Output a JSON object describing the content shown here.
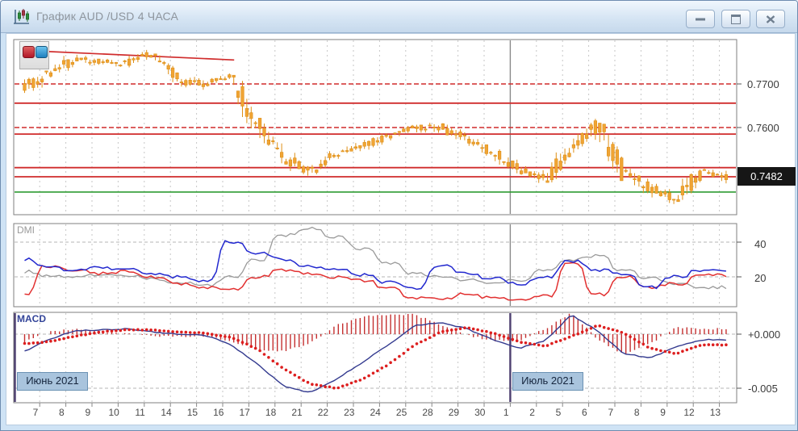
{
  "window": {
    "title": "График AUD /USD  4 ЧАСА",
    "buttons": {
      "minimize": "minimize",
      "maximize": "maximize",
      "close": "close"
    }
  },
  "colors": {
    "candle": "#F0A434",
    "candle_stroke": "#DE8F16",
    "level_red": "#D02C2C",
    "level_green": "#2E9B32",
    "dmi_plus": "#2228CF",
    "dmi_minus": "#E23030",
    "dmi_adx": "#9A9A9A",
    "macd_line": "#333A8F",
    "macd_signal": "#DD1F1F",
    "macd_hist": "#C43030",
    "month_line_gray": "#8A8A8A",
    "month_line_purple": "#4D3F70",
    "grid": "#C6C6C6",
    "panel_border": "#7F7F7F"
  },
  "chart_data": {
    "type": "candlestick+indicators",
    "symbol_timeframe": "AUD/USD 4H",
    "x_labels": [
      "7",
      "8",
      "9",
      "10",
      "11",
      "14",
      "15",
      "16",
      "17",
      "18",
      "21",
      "22",
      "23",
      "24",
      "25",
      "28",
      "29",
      "30",
      "1",
      "2",
      "5",
      "6",
      "7",
      "8",
      "9",
      "12",
      "13"
    ],
    "months": [
      {
        "label": "Июнь 2021",
        "day_index": 0
      },
      {
        "label": "Июль 2021",
        "day_index": 18
      }
    ],
    "price_axis": {
      "labels": [
        {
          "text": "0.7700",
          "price": 0.77
        },
        {
          "text": "0.7600",
          "price": 0.76
        }
      ],
      "current": {
        "text": "0.7482",
        "price": 0.7482
      }
    },
    "levels": {
      "dashed_red": [
        0.77,
        0.76
      ],
      "solid_red": [
        0.7656,
        0.7585,
        0.7508,
        0.7487
      ],
      "green": [
        0.7452
      ]
    },
    "trend_line": {
      "day1": -0.1,
      "price1": 0.7776,
      "day2": 7.6,
      "price2": 0.7755
    },
    "daily_ohlc": [
      [
        0.769,
        0.773,
        0.767,
        0.7722
      ],
      [
        0.7722,
        0.7768,
        0.7712,
        0.7756
      ],
      [
        0.7756,
        0.7775,
        0.7736,
        0.7752
      ],
      [
        0.7752,
        0.777,
        0.7732,
        0.7748
      ],
      [
        0.7748,
        0.7778,
        0.7738,
        0.777
      ],
      [
        0.777,
        0.7774,
        0.7694,
        0.7706
      ],
      [
        0.7706,
        0.7722,
        0.7678,
        0.77
      ],
      [
        0.77,
        0.7724,
        0.7692,
        0.7716
      ],
      [
        0.7716,
        0.772,
        0.7598,
        0.7612
      ],
      [
        0.7612,
        0.7622,
        0.7518,
        0.7532
      ],
      [
        0.7532,
        0.7542,
        0.7476,
        0.75
      ],
      [
        0.75,
        0.7546,
        0.749,
        0.7538
      ],
      [
        0.7538,
        0.7572,
        0.7528,
        0.756
      ],
      [
        0.756,
        0.7592,
        0.7548,
        0.758
      ],
      [
        0.758,
        0.7606,
        0.7562,
        0.7598
      ],
      [
        0.7598,
        0.7626,
        0.7586,
        0.7602
      ],
      [
        0.7602,
        0.761,
        0.7558,
        0.7572
      ],
      [
        0.7572,
        0.758,
        0.753,
        0.7542
      ],
      [
        0.7542,
        0.755,
        0.7486,
        0.7508
      ],
      [
        0.7508,
        0.7522,
        0.7462,
        0.748
      ],
      [
        0.748,
        0.756,
        0.7474,
        0.7552
      ],
      [
        0.7552,
        0.762,
        0.754,
        0.7608
      ],
      [
        0.7608,
        0.7614,
        0.7478,
        0.7496
      ],
      [
        0.7496,
        0.7506,
        0.744,
        0.746
      ],
      [
        0.746,
        0.7472,
        0.7422,
        0.7438
      ],
      [
        0.7438,
        0.7516,
        0.743,
        0.75
      ],
      [
        0.75,
        0.7506,
        0.7466,
        0.7482
      ]
    ],
    "dmi": {
      "label": "DMI",
      "axis_labels": [
        {
          "text": "40",
          "value": 40
        },
        {
          "text": "20",
          "value": 20
        }
      ],
      "adx": [
        23,
        21,
        20,
        21,
        21,
        19,
        17,
        15,
        20,
        30,
        44,
        48,
        43,
        36,
        28,
        22,
        20,
        18,
        17,
        18,
        24,
        30,
        32,
        24,
        19,
        16,
        14
      ],
      "plus_di": [
        30,
        26,
        24,
        25,
        24,
        22,
        20,
        18,
        40,
        34,
        30,
        26,
        24,
        21,
        17,
        13,
        26,
        22,
        19,
        16,
        20,
        29,
        24,
        22,
        14,
        20,
        24
      ],
      "minus_di": [
        10,
        26,
        24,
        22,
        23,
        20,
        16,
        14,
        13,
        20,
        24,
        22,
        20,
        18,
        14,
        8,
        7,
        10,
        8,
        7,
        9,
        28,
        10,
        20,
        14,
        16,
        21
      ]
    },
    "macd": {
      "label": "MACD",
      "axis_labels": [
        {
          "text": "+0.000",
          "value": 0.0
        },
        {
          "text": "-0.005",
          "value": -0.005
        }
      ],
      "macd": [
        -0.0017,
        -0.0005,
        0.0003,
        0.0004,
        0.0005,
        0.0002,
        0.0,
        -0.0001,
        -0.001,
        -0.0028,
        -0.0048,
        -0.0054,
        -0.0042,
        -0.0026,
        -0.001,
        0.0008,
        0.0011,
        0.0005,
        -0.0005,
        -0.0013,
        -0.0006,
        0.0018,
        0.0003,
        -0.0018,
        -0.0022,
        -0.0012,
        -0.0005
      ],
      "signal": [
        -0.0009,
        -0.0007,
        -0.0002,
        0.0002,
        0.0004,
        0.0004,
        0.0002,
        0.0001,
        -0.0003,
        -0.0014,
        -0.0032,
        -0.0046,
        -0.005,
        -0.0042,
        -0.0028,
        -0.001,
        0.0002,
        0.0006,
        0.0001,
        -0.0007,
        -0.0011,
        -0.0002,
        0.0008,
        0.0001,
        -0.0013,
        -0.0018,
        -0.001
      ]
    }
  }
}
